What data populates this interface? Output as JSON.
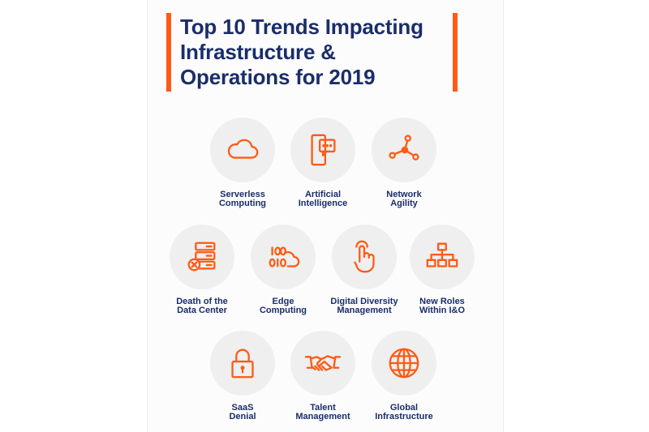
{
  "title": {
    "line1": "Top 10 Trends Impacting",
    "line2": "Infrastructure &",
    "line3": "Operations for 2019"
  },
  "accent_color": "#ff5a14",
  "text_color": "#1a2d6b",
  "trends": [
    {
      "icon": "cloud-icon",
      "line1": "Serverless",
      "line2": "Computing"
    },
    {
      "icon": "ai-chat-icon",
      "line1": "Artificial",
      "line2": "Intelligence"
    },
    {
      "icon": "network-icon",
      "line1": "Network",
      "line2": "Agility"
    },
    {
      "icon": "server-x-icon",
      "line1": "Death of the",
      "line2": "Data Center"
    },
    {
      "icon": "binary-cloud-icon",
      "line1": "Edge",
      "line2": "Computing"
    },
    {
      "icon": "touch-icon",
      "line1": "Digital Diversity",
      "line2": "Management"
    },
    {
      "icon": "org-chart-icon",
      "line1": "New Roles",
      "line2": "Within I&O"
    },
    {
      "icon": "lock-icon",
      "line1": "SaaS",
      "line2": "Denial"
    },
    {
      "icon": "handshake-icon",
      "line1": "Talent",
      "line2": "Management"
    },
    {
      "icon": "globe-icon",
      "line1": "Global",
      "line2": "Infrastructure"
    }
  ]
}
